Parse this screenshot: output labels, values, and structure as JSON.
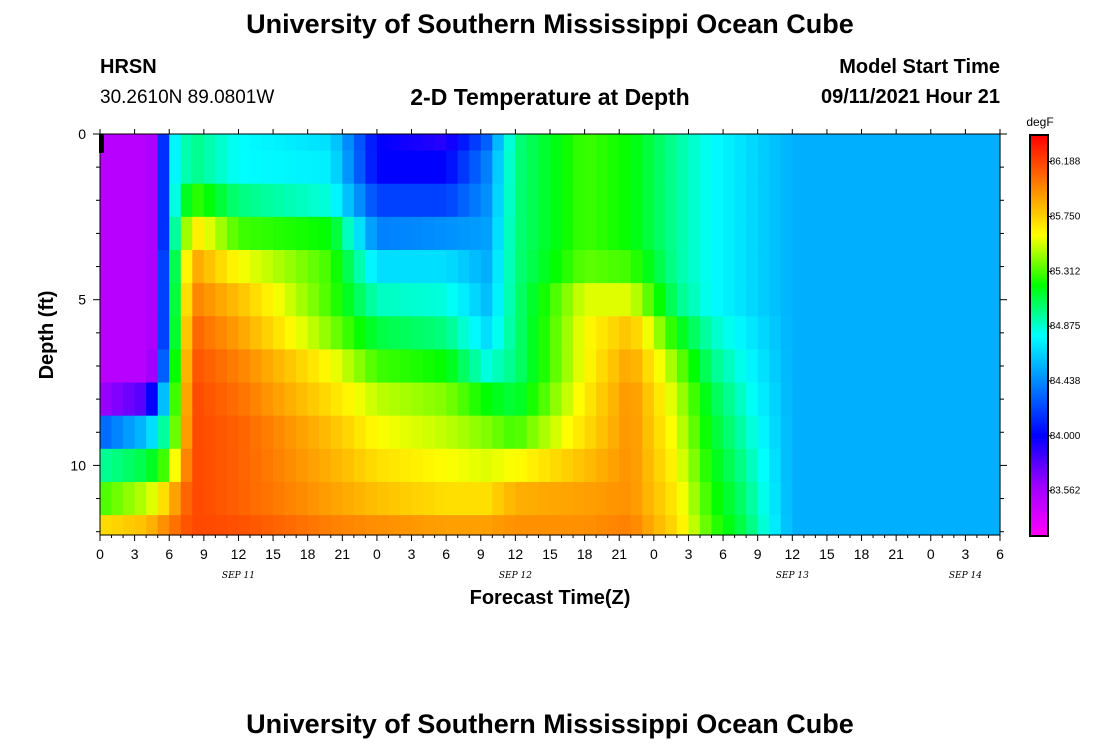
{
  "header": {
    "title": "University of Southern Mississippi Ocean Cube",
    "station": "HRSN",
    "coordinates": "30.2610N  89.0801W",
    "plot_title": "2-D Temperature at Depth",
    "model_start_label": "Model Start Time",
    "model_start_value": "09/11/2021 Hour 21",
    "footer_title": "University of Southern Mississippi Ocean Cube"
  },
  "chart_data": {
    "type": "heatmap",
    "title": "2-D Temperature at Depth",
    "xlabel": "Forecast Time(Z)",
    "ylabel": "Depth (ft)",
    "x_tick_labels": [
      "0",
      "3",
      "6",
      "9",
      "12",
      "15",
      "18",
      "21",
      "0",
      "3",
      "6",
      "9",
      "12",
      "15",
      "18",
      "21",
      "0",
      "3",
      "6",
      "9",
      "12",
      "15",
      "18",
      "21",
      "0",
      "3",
      "6"
    ],
    "x_tick_hours": [
      0,
      3,
      6,
      9,
      12,
      15,
      18,
      21,
      24,
      27,
      30,
      33,
      36,
      39,
      42,
      45,
      48,
      51,
      54,
      57,
      60,
      63,
      66,
      69,
      72,
      75,
      78
    ],
    "date_labels": [
      {
        "text": "SEP 11",
        "hour": 12
      },
      {
        "text": "SEP 12",
        "hour": 36
      },
      {
        "text": "SEP 13",
        "hour": 60
      },
      {
        "text": "SEP 14",
        "hour": 75
      }
    ],
    "xlim_hours": [
      0,
      78
    ],
    "y_tick_labels": [
      "0",
      "5",
      "10"
    ],
    "y_tick_values": [
      0,
      5,
      10
    ],
    "ylim": [
      0,
      12.1
    ],
    "depth_levels_ft": [
      0,
      1,
      2,
      3,
      4,
      5,
      6,
      7,
      8,
      9,
      10,
      11,
      12
    ],
    "colorbar": {
      "units": "degF",
      "min": 83.2,
      "max": 86.4,
      "tick_labels": [
        "86.188",
        "85.750",
        "85.312",
        "84.875",
        "84.438",
        "84.000",
        "83.562"
      ],
      "tick_values": [
        86.188,
        85.75,
        85.312,
        84.875,
        84.438,
        84.0,
        83.562
      ],
      "colors": [
        "#ff00ff",
        "#a000ff",
        "#0000ff",
        "#0080ff",
        "#00ffff",
        "#00ff00",
        "#ffff00",
        "#ff8000",
        "#ff0000"
      ]
    },
    "key_times_hours": [
      0,
      4,
      5,
      6,
      8,
      12,
      20,
      24,
      30,
      33.5,
      36,
      42,
      46,
      50,
      53,
      56,
      60,
      78
    ],
    "key_temperatures_degF": [
      [
        83.5,
        83.5,
        83.6,
        84.7,
        85.0,
        84.8,
        84.7,
        84.0,
        83.9,
        84.3,
        85.0,
        85.3,
        85.2,
        84.95,
        84.8,
        84.7,
        84.55,
        84.55
      ],
      [
        83.5,
        83.5,
        83.6,
        84.7,
        85.0,
        84.8,
        84.75,
        84.0,
        84.0,
        84.4,
        85.0,
        85.3,
        85.2,
        84.95,
        84.8,
        84.7,
        84.55,
        84.55
      ],
      [
        83.5,
        83.5,
        83.6,
        84.7,
        85.3,
        85.0,
        84.85,
        84.2,
        84.2,
        84.45,
        85.0,
        85.3,
        85.2,
        84.95,
        84.8,
        84.7,
        84.55,
        84.55
      ],
      [
        83.5,
        83.5,
        83.6,
        84.7,
        85.7,
        85.3,
        85.2,
        84.4,
        84.45,
        84.5,
        85.0,
        85.3,
        85.2,
        84.95,
        84.8,
        84.7,
        84.55,
        84.55
      ],
      [
        83.5,
        83.5,
        83.6,
        84.8,
        85.9,
        85.6,
        85.3,
        84.7,
        84.7,
        84.55,
        85.0,
        85.35,
        85.3,
        84.95,
        84.8,
        84.7,
        84.55,
        84.55
      ],
      [
        83.5,
        83.5,
        83.6,
        84.8,
        86.0,
        85.8,
        85.3,
        84.9,
        84.85,
        84.6,
        85.0,
        85.55,
        85.55,
        85.0,
        84.8,
        84.7,
        84.55,
        84.55
      ],
      [
        83.5,
        83.5,
        83.6,
        84.8,
        86.1,
        85.9,
        85.4,
        85.1,
        85.0,
        84.7,
        85.0,
        85.6,
        85.8,
        85.2,
        84.9,
        84.75,
        84.55,
        84.55
      ],
      [
        83.5,
        83.5,
        83.7,
        84.9,
        86.15,
        86.0,
        85.6,
        85.3,
        85.2,
        84.85,
        85.0,
        85.6,
        85.9,
        85.4,
        85.0,
        84.8,
        84.55,
        84.55
      ],
      [
        83.6,
        83.8,
        84.2,
        85.0,
        86.18,
        86.05,
        85.7,
        85.5,
        85.4,
        85.2,
        85.1,
        85.65,
        85.95,
        85.5,
        85.1,
        84.85,
        84.55,
        84.55
      ],
      [
        84.3,
        84.6,
        84.8,
        85.1,
        86.18,
        86.1,
        85.8,
        85.6,
        85.5,
        85.4,
        85.3,
        85.7,
        85.95,
        85.55,
        85.15,
        84.9,
        84.55,
        84.55
      ],
      [
        84.95,
        85.1,
        85.2,
        85.4,
        86.18,
        86.1,
        85.85,
        85.7,
        85.6,
        85.55,
        85.6,
        85.8,
        85.95,
        85.6,
        85.2,
        84.95,
        84.55,
        84.55
      ],
      [
        85.3,
        85.5,
        85.6,
        85.8,
        86.18,
        86.1,
        85.9,
        85.8,
        85.7,
        85.7,
        85.85,
        85.9,
        85.95,
        85.65,
        85.25,
        85.0,
        84.55,
        84.55
      ],
      [
        85.7,
        85.8,
        85.9,
        86.0,
        86.18,
        86.15,
        86.0,
        85.95,
        85.9,
        85.9,
        85.95,
        85.95,
        86.0,
        85.7,
        85.3,
        85.05,
        84.55,
        84.55
      ]
    ]
  }
}
